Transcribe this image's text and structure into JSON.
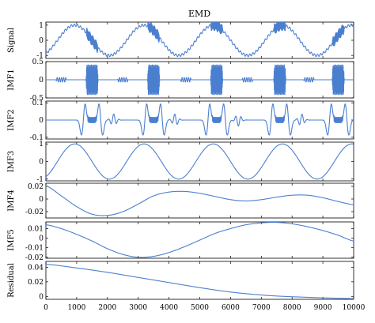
{
  "chart_data": {
    "type": "line",
    "title": "EMD",
    "line_color": "#4a7fd0",
    "xlim": [
      0,
      10000
    ],
    "x_ticks": [
      "0",
      "1000",
      "2000",
      "3000",
      "4000",
      "5000",
      "6000",
      "7000",
      "8000",
      "9000",
      "10000"
    ],
    "panels": [
      {
        "name": "Signal",
        "ylabel": "Signal",
        "ylim": [
          -1.2,
          1.2
        ],
        "yticks": [
          "1",
          "0",
          "-1"
        ],
        "ytick_values": [
          1,
          0,
          -1
        ],
        "model": {
          "kind": "signal",
          "period": 2250,
          "phase_offset": 375,
          "amplitude": 1.0,
          "burst_centers": [
            1500,
            3500,
            5550,
            7600,
            9500
          ],
          "burst_width": 400,
          "burst_amp": 0.3,
          "ripple_amp": 0.08,
          "burst_freq": 150
        }
      },
      {
        "name": "IMF1",
        "ylabel": "IMF1",
        "ylim": [
          -0.5,
          0.5
        ],
        "yticks": [
          "0.5",
          "0",
          "-0.5"
        ],
        "ytick_values": [
          0.5,
          0,
          -0.5
        ],
        "model": {
          "kind": "bursts",
          "burst_centers": [
            1500,
            3500,
            5550,
            7600,
            9500
          ],
          "burst_width": 400,
          "burst_amp": 0.42,
          "ripple_centers": [
            500,
            2500,
            4550,
            6550,
            8550
          ],
          "ripple_width": 350,
          "ripple_amp": 0.06,
          "freq": 150
        }
      },
      {
        "name": "IMF2",
        "ylabel": "IMF2",
        "ylim": [
          -0.11,
          0.11
        ],
        "yticks": [
          "0.1",
          "0",
          "-0.1"
        ],
        "ytick_values": [
          0.1,
          0,
          -0.1
        ],
        "model": {
          "kind": "imf2",
          "burst_centers": [
            1500,
            3500,
            5550,
            7600,
            9500
          ],
          "amp": 0.1,
          "small_amp": 0.02
        }
      },
      {
        "name": "IMF3",
        "ylabel": "IMF3",
        "ylim": [
          -1.1,
          1.1
        ],
        "yticks": [
          "1",
          "0",
          "-1"
        ],
        "ytick_values": [
          1,
          0,
          -1
        ],
        "model": {
          "kind": "sine",
          "period": 2250,
          "phase_offset": 375,
          "amplitude": 1.0,
          "baseline": 0
        }
      },
      {
        "name": "IMF4",
        "ylabel": "IMF4",
        "ylim": [
          -0.03,
          0.025
        ],
        "yticks": [
          "0.02",
          "0",
          "-0.02"
        ],
        "ytick_values": [
          0.02,
          0,
          -0.02
        ],
        "model": {
          "kind": "points",
          "x": [
            0,
            500,
            1000,
            1500,
            2000,
            2500,
            3000,
            3500,
            4000,
            4500,
            5000,
            5500,
            6000,
            6500,
            7000,
            7500,
            8000,
            8500,
            9000,
            9500,
            10000
          ],
          "y": [
            0.021,
            0.005,
            -0.012,
            -0.024,
            -0.026,
            -0.02,
            -0.008,
            0.005,
            0.011,
            0.012,
            0.009,
            0.004,
            -0.001,
            -0.003,
            -0.001,
            0.003,
            0.006,
            0.006,
            0.002,
            -0.004,
            -0.009
          ]
        }
      },
      {
        "name": "IMF5",
        "ylabel": "IMF5",
        "ylim": [
          -0.021,
          0.017
        ],
        "yticks": [
          "0.01",
          "0",
          "-0.01",
          "-0.02"
        ],
        "ytick_values": [
          0.01,
          0,
          -0.01,
          -0.02
        ],
        "model": {
          "kind": "points",
          "x": [
            0,
            500,
            1000,
            1500,
            2000,
            2500,
            3000,
            3500,
            4000,
            4500,
            5000,
            5500,
            6000,
            6500,
            7000,
            7500,
            8000,
            8500,
            9000,
            9500,
            10000
          ],
          "y": [
            0.014,
            0.01,
            0.004,
            -0.003,
            -0.011,
            -0.017,
            -0.02,
            -0.019,
            -0.015,
            -0.009,
            -0.002,
            0.005,
            0.01,
            0.014,
            0.016,
            0.0165,
            0.015,
            0.012,
            0.008,
            0.003,
            -0.003
          ]
        }
      },
      {
        "name": "Residual",
        "ylabel": "Residual",
        "ylim": [
          -0.004,
          0.048
        ],
        "yticks": [
          "0.04",
          "0.02",
          "0"
        ],
        "ytick_values": [
          0.04,
          0.02,
          0
        ],
        "model": {
          "kind": "points",
          "x": [
            0,
            1000,
            2000,
            3000,
            4000,
            5000,
            6000,
            7000,
            7500,
            8000,
            9000,
            10000
          ],
          "y": [
            0.044,
            0.039,
            0.033,
            0.026,
            0.019,
            0.012,
            0.006,
            0.002,
            0.0005,
            -0.0005,
            -0.002,
            -0.003
          ]
        }
      }
    ]
  }
}
